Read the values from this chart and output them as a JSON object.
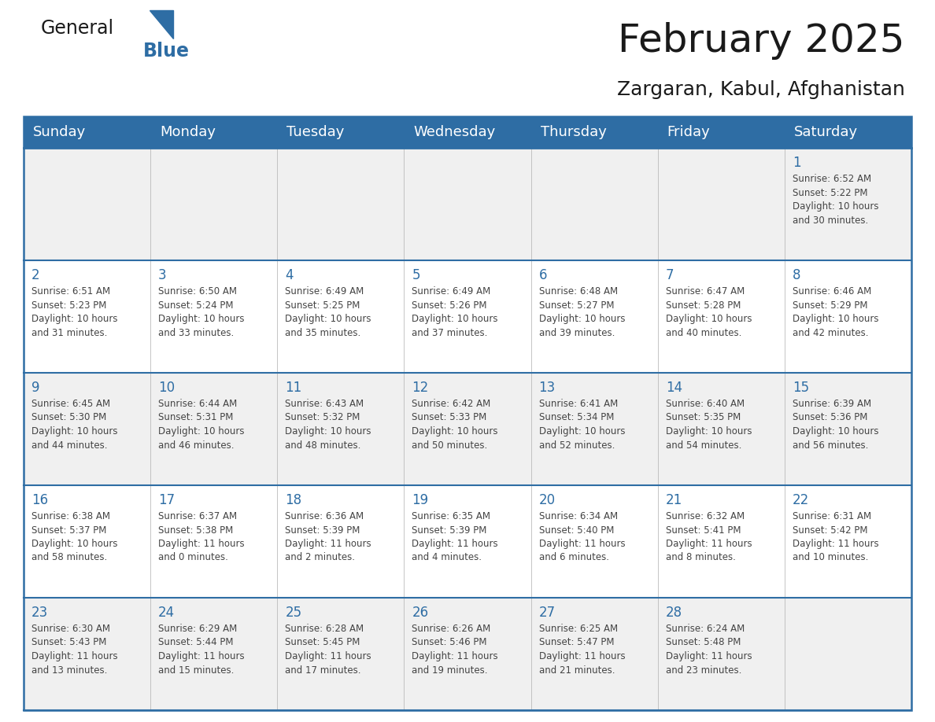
{
  "title": "February 2025",
  "subtitle": "Zargaran, Kabul, Afghanistan",
  "header_bg": "#2E6DA4",
  "header_text_color": "#FFFFFF",
  "cell_bg_odd": "#F0F0F0",
  "cell_bg_even": "#FFFFFF",
  "grid_line_color": "#2E6DA4",
  "day_number_color": "#2E6DA4",
  "cell_text_color": "#444444",
  "days_of_week": [
    "Sunday",
    "Monday",
    "Tuesday",
    "Wednesday",
    "Thursday",
    "Friday",
    "Saturday"
  ],
  "calendar_data": [
    [
      null,
      null,
      null,
      null,
      null,
      null,
      1
    ],
    [
      2,
      3,
      4,
      5,
      6,
      7,
      8
    ],
    [
      9,
      10,
      11,
      12,
      13,
      14,
      15
    ],
    [
      16,
      17,
      18,
      19,
      20,
      21,
      22
    ],
    [
      23,
      24,
      25,
      26,
      27,
      28,
      null
    ]
  ],
  "sunrise_data": {
    "1": "Sunrise: 6:52 AM\nSunset: 5:22 PM\nDaylight: 10 hours\nand 30 minutes.",
    "2": "Sunrise: 6:51 AM\nSunset: 5:23 PM\nDaylight: 10 hours\nand 31 minutes.",
    "3": "Sunrise: 6:50 AM\nSunset: 5:24 PM\nDaylight: 10 hours\nand 33 minutes.",
    "4": "Sunrise: 6:49 AM\nSunset: 5:25 PM\nDaylight: 10 hours\nand 35 minutes.",
    "5": "Sunrise: 6:49 AM\nSunset: 5:26 PM\nDaylight: 10 hours\nand 37 minutes.",
    "6": "Sunrise: 6:48 AM\nSunset: 5:27 PM\nDaylight: 10 hours\nand 39 minutes.",
    "7": "Sunrise: 6:47 AM\nSunset: 5:28 PM\nDaylight: 10 hours\nand 40 minutes.",
    "8": "Sunrise: 6:46 AM\nSunset: 5:29 PM\nDaylight: 10 hours\nand 42 minutes.",
    "9": "Sunrise: 6:45 AM\nSunset: 5:30 PM\nDaylight: 10 hours\nand 44 minutes.",
    "10": "Sunrise: 6:44 AM\nSunset: 5:31 PM\nDaylight: 10 hours\nand 46 minutes.",
    "11": "Sunrise: 6:43 AM\nSunset: 5:32 PM\nDaylight: 10 hours\nand 48 minutes.",
    "12": "Sunrise: 6:42 AM\nSunset: 5:33 PM\nDaylight: 10 hours\nand 50 minutes.",
    "13": "Sunrise: 6:41 AM\nSunset: 5:34 PM\nDaylight: 10 hours\nand 52 minutes.",
    "14": "Sunrise: 6:40 AM\nSunset: 5:35 PM\nDaylight: 10 hours\nand 54 minutes.",
    "15": "Sunrise: 6:39 AM\nSunset: 5:36 PM\nDaylight: 10 hours\nand 56 minutes.",
    "16": "Sunrise: 6:38 AM\nSunset: 5:37 PM\nDaylight: 10 hours\nand 58 minutes.",
    "17": "Sunrise: 6:37 AM\nSunset: 5:38 PM\nDaylight: 11 hours\nand 0 minutes.",
    "18": "Sunrise: 6:36 AM\nSunset: 5:39 PM\nDaylight: 11 hours\nand 2 minutes.",
    "19": "Sunrise: 6:35 AM\nSunset: 5:39 PM\nDaylight: 11 hours\nand 4 minutes.",
    "20": "Sunrise: 6:34 AM\nSunset: 5:40 PM\nDaylight: 11 hours\nand 6 minutes.",
    "21": "Sunrise: 6:32 AM\nSunset: 5:41 PM\nDaylight: 11 hours\nand 8 minutes.",
    "22": "Sunrise: 6:31 AM\nSunset: 5:42 PM\nDaylight: 11 hours\nand 10 minutes.",
    "23": "Sunrise: 6:30 AM\nSunset: 5:43 PM\nDaylight: 11 hours\nand 13 minutes.",
    "24": "Sunrise: 6:29 AM\nSunset: 5:44 PM\nDaylight: 11 hours\nand 15 minutes.",
    "25": "Sunrise: 6:28 AM\nSunset: 5:45 PM\nDaylight: 11 hours\nand 17 minutes.",
    "26": "Sunrise: 6:26 AM\nSunset: 5:46 PM\nDaylight: 11 hours\nand 19 minutes.",
    "27": "Sunrise: 6:25 AM\nSunset: 5:47 PM\nDaylight: 11 hours\nand 21 minutes.",
    "28": "Sunrise: 6:24 AM\nSunset: 5:48 PM\nDaylight: 11 hours\nand 23 minutes."
  },
  "logo_general_color": "#1a1a1a",
  "logo_blue_color": "#2E6DA4",
  "title_fontsize": 36,
  "subtitle_fontsize": 18,
  "header_fontsize": 13,
  "day_num_fontsize": 12,
  "cell_text_fontsize": 8.5
}
